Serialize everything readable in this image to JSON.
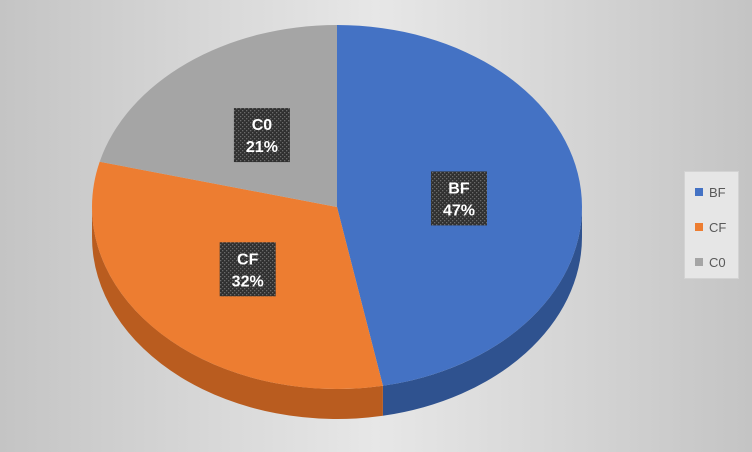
{
  "chart_data": {
    "type": "pie",
    "slices": [
      {
        "label": "BF",
        "value": 47,
        "percent": "47%",
        "color": "#4472C4",
        "side_color": "#2F528F"
      },
      {
        "label": "CF",
        "value": 32,
        "percent": "32%",
        "color": "#ED7D31",
        "side_color": "#B95C1F"
      },
      {
        "label": "C0",
        "value": 21,
        "percent": "21%",
        "color": "#A5A5A5",
        "side_color": "#7F7F7F"
      }
    ],
    "legend": {
      "position": "right",
      "entries": [
        "BF",
        "CF",
        "C0"
      ]
    },
    "style": "3d"
  }
}
